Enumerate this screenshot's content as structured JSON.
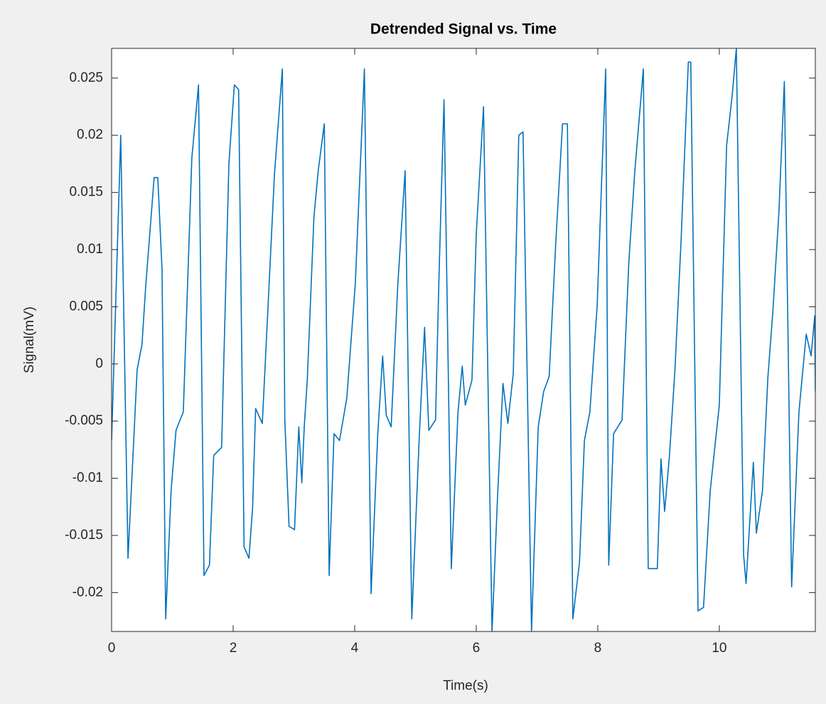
{
  "chart_data": {
    "type": "line",
    "title": "Detrended Signal vs. Time",
    "x_label": "Time(s)",
    "y_label": "Signal(mV)",
    "x": [
      0,
      0.15,
      0.27,
      0.33,
      0.42,
      0.5,
      0.56,
      0.7,
      0.76,
      0.83,
      0.89,
      0.98,
      1.06,
      1.18,
      1.32,
      1.43,
      1.52,
      1.61,
      1.68,
      1.81,
      1.93,
      2.02,
      2.09,
      2.18,
      2.26,
      2.32,
      2.37,
      2.48,
      2.56,
      2.68,
      2.81,
      2.85,
      2.92,
      3.01,
      3.08,
      3.13,
      3.17,
      3.22,
      3.33,
      3.4,
      3.5,
      3.58,
      3.66,
      3.75,
      3.87,
      4.01,
      4.16,
      4.27,
      4.38,
      4.46,
      4.52,
      4.6,
      4.71,
      4.83,
      4.94,
      5.06,
      5.15,
      5.22,
      5.33,
      5.39,
      5.47,
      5.59,
      5.7,
      5.77,
      5.82,
      5.93,
      6.0,
      6.12,
      6.26,
      6.35,
      6.44,
      6.52,
      6.61,
      6.7,
      6.77,
      6.91,
      7.02,
      7.11,
      7.2,
      7.31,
      7.42,
      7.5,
      7.59,
      7.7,
      7.78,
      7.87,
      7.99,
      8.13,
      8.18,
      8.26,
      8.4,
      8.51,
      8.61,
      8.75,
      8.83,
      8.98,
      9.04,
      9.1,
      9.18,
      9.27,
      9.37,
      9.49,
      9.53,
      9.65,
      9.74,
      9.85,
      10.0,
      10.12,
      10.21,
      10.28,
      10.4,
      10.44,
      10.56,
      10.61,
      10.71,
      10.8,
      10.88,
      10.98,
      11.07,
      11.19,
      11.31,
      11.43,
      11.51,
      11.57,
      11.58
    ],
    "series": [
      {
        "name": "Signal",
        "color": "#0072bd",
        "values": [
          -0.0067,
          0.02,
          -0.017,
          -0.0104,
          -0.0005,
          0.0017,
          0.0067,
          0.0163,
          0.0163,
          0.0082,
          -0.0223,
          -0.011,
          -0.0058,
          -0.0042,
          0.018,
          0.0244,
          -0.0185,
          -0.0176,
          -0.008,
          -0.0073,
          0.0175,
          0.0244,
          0.024,
          -0.016,
          -0.017,
          -0.0126,
          -0.0039,
          -0.0052,
          0.0035,
          0.0166,
          0.0258,
          -0.0049,
          -0.0142,
          -0.0145,
          -0.0055,
          -0.0104,
          -0.0055,
          -0.0014,
          0.0129,
          0.0169,
          0.021,
          -0.0185,
          -0.0061,
          -0.0067,
          -0.003,
          0.007,
          0.0258,
          -0.0201,
          -0.0061,
          0.0007,
          -0.0045,
          -0.0055,
          0.007,
          0.0169,
          -0.0223,
          -0.0067,
          0.0032,
          -0.0058,
          -0.0049,
          0.0082,
          0.0231,
          -0.0179,
          -0.0042,
          -0.0002,
          -0.0036,
          -0.0014,
          0.0113,
          0.0225,
          -0.0234,
          -0.0117,
          -0.0017,
          -0.0052,
          -0.0008,
          0.02,
          0.0203,
          -0.0234,
          -0.0055,
          -0.0024,
          -0.0011,
          0.0107,
          0.021,
          0.021,
          -0.0223,
          -0.0173,
          -0.0067,
          -0.0042,
          0.0051,
          0.0258,
          -0.0176,
          -0.0061,
          -0.0049,
          0.0088,
          0.0169,
          0.0258,
          -0.0179,
          -0.0179,
          -0.0083,
          -0.0129,
          -0.008,
          -0.0005,
          0.0107,
          0.0264,
          0.0264,
          -0.0216,
          -0.0213,
          -0.0111,
          -0.0036,
          0.0191,
          0.0234,
          0.0276,
          -0.0167,
          -0.0192,
          -0.0086,
          -0.0148,
          -0.0111,
          -0.0011,
          0.0045,
          0.0132,
          0.0247,
          -0.0195,
          -0.0042,
          0.0026,
          0.0007,
          0.0042,
          -0.0024
        ]
      }
    ],
    "xlim": [
      0,
      11.58
    ],
    "ylim": [
      -0.0234,
      0.0276
    ],
    "xticks": [
      0,
      2,
      4,
      6,
      8,
      10
    ],
    "yticks": [
      -0.02,
      -0.015,
      -0.01,
      -0.005,
      0,
      0.005,
      0.01,
      0.015,
      0.02,
      0.025
    ]
  }
}
